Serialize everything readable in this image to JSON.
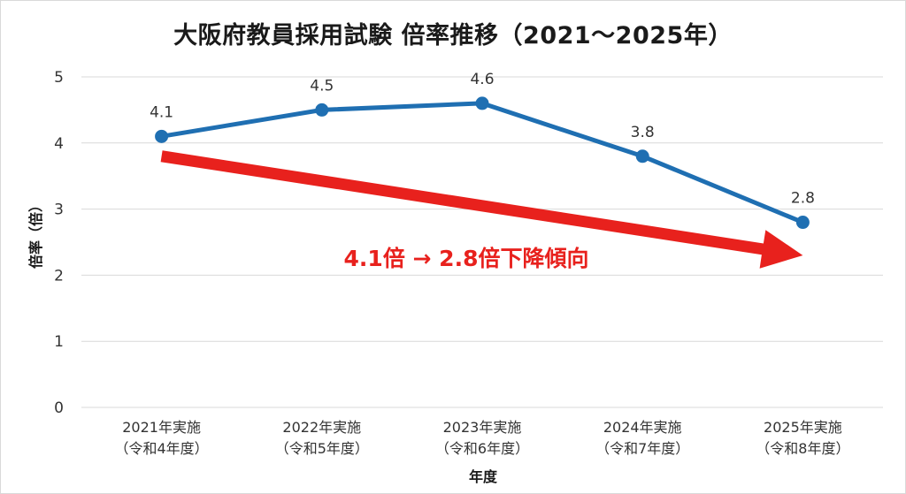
{
  "chart_data": {
    "type": "line",
    "title": "大阪府教員採用試験 倍率推移（2021～2025年）",
    "xlabel": "年度",
    "ylabel": "倍率（倍）",
    "ylim": [
      0,
      5
    ],
    "yticks": [
      0,
      1,
      2,
      3,
      4,
      5
    ],
    "grid": true,
    "categories": [
      [
        "2021年実施",
        "（令和4年度）"
      ],
      [
        "2022年実施",
        "（令和5年度）"
      ],
      [
        "2023年実施",
        "（令和6年度）"
      ],
      [
        "2024年実施",
        "（令和7年度）"
      ],
      [
        "2025年実施",
        "（令和8年度）"
      ]
    ],
    "series": [
      {
        "values": [
          4.1,
          4.5,
          4.6,
          3.8,
          2.8
        ],
        "data_labels": [
          "4.1",
          "4.5",
          "4.6",
          "3.8",
          "2.8"
        ],
        "color": "#1f6fb2"
      }
    ],
    "annotation": {
      "text": "4.1倍 → 2.8倍下降傾向",
      "color": "#e8211d",
      "arrow_from": {
        "category_index": 0,
        "y": 3.8
      },
      "arrow_to": {
        "category_index": 4,
        "y": 2.3
      }
    }
  }
}
